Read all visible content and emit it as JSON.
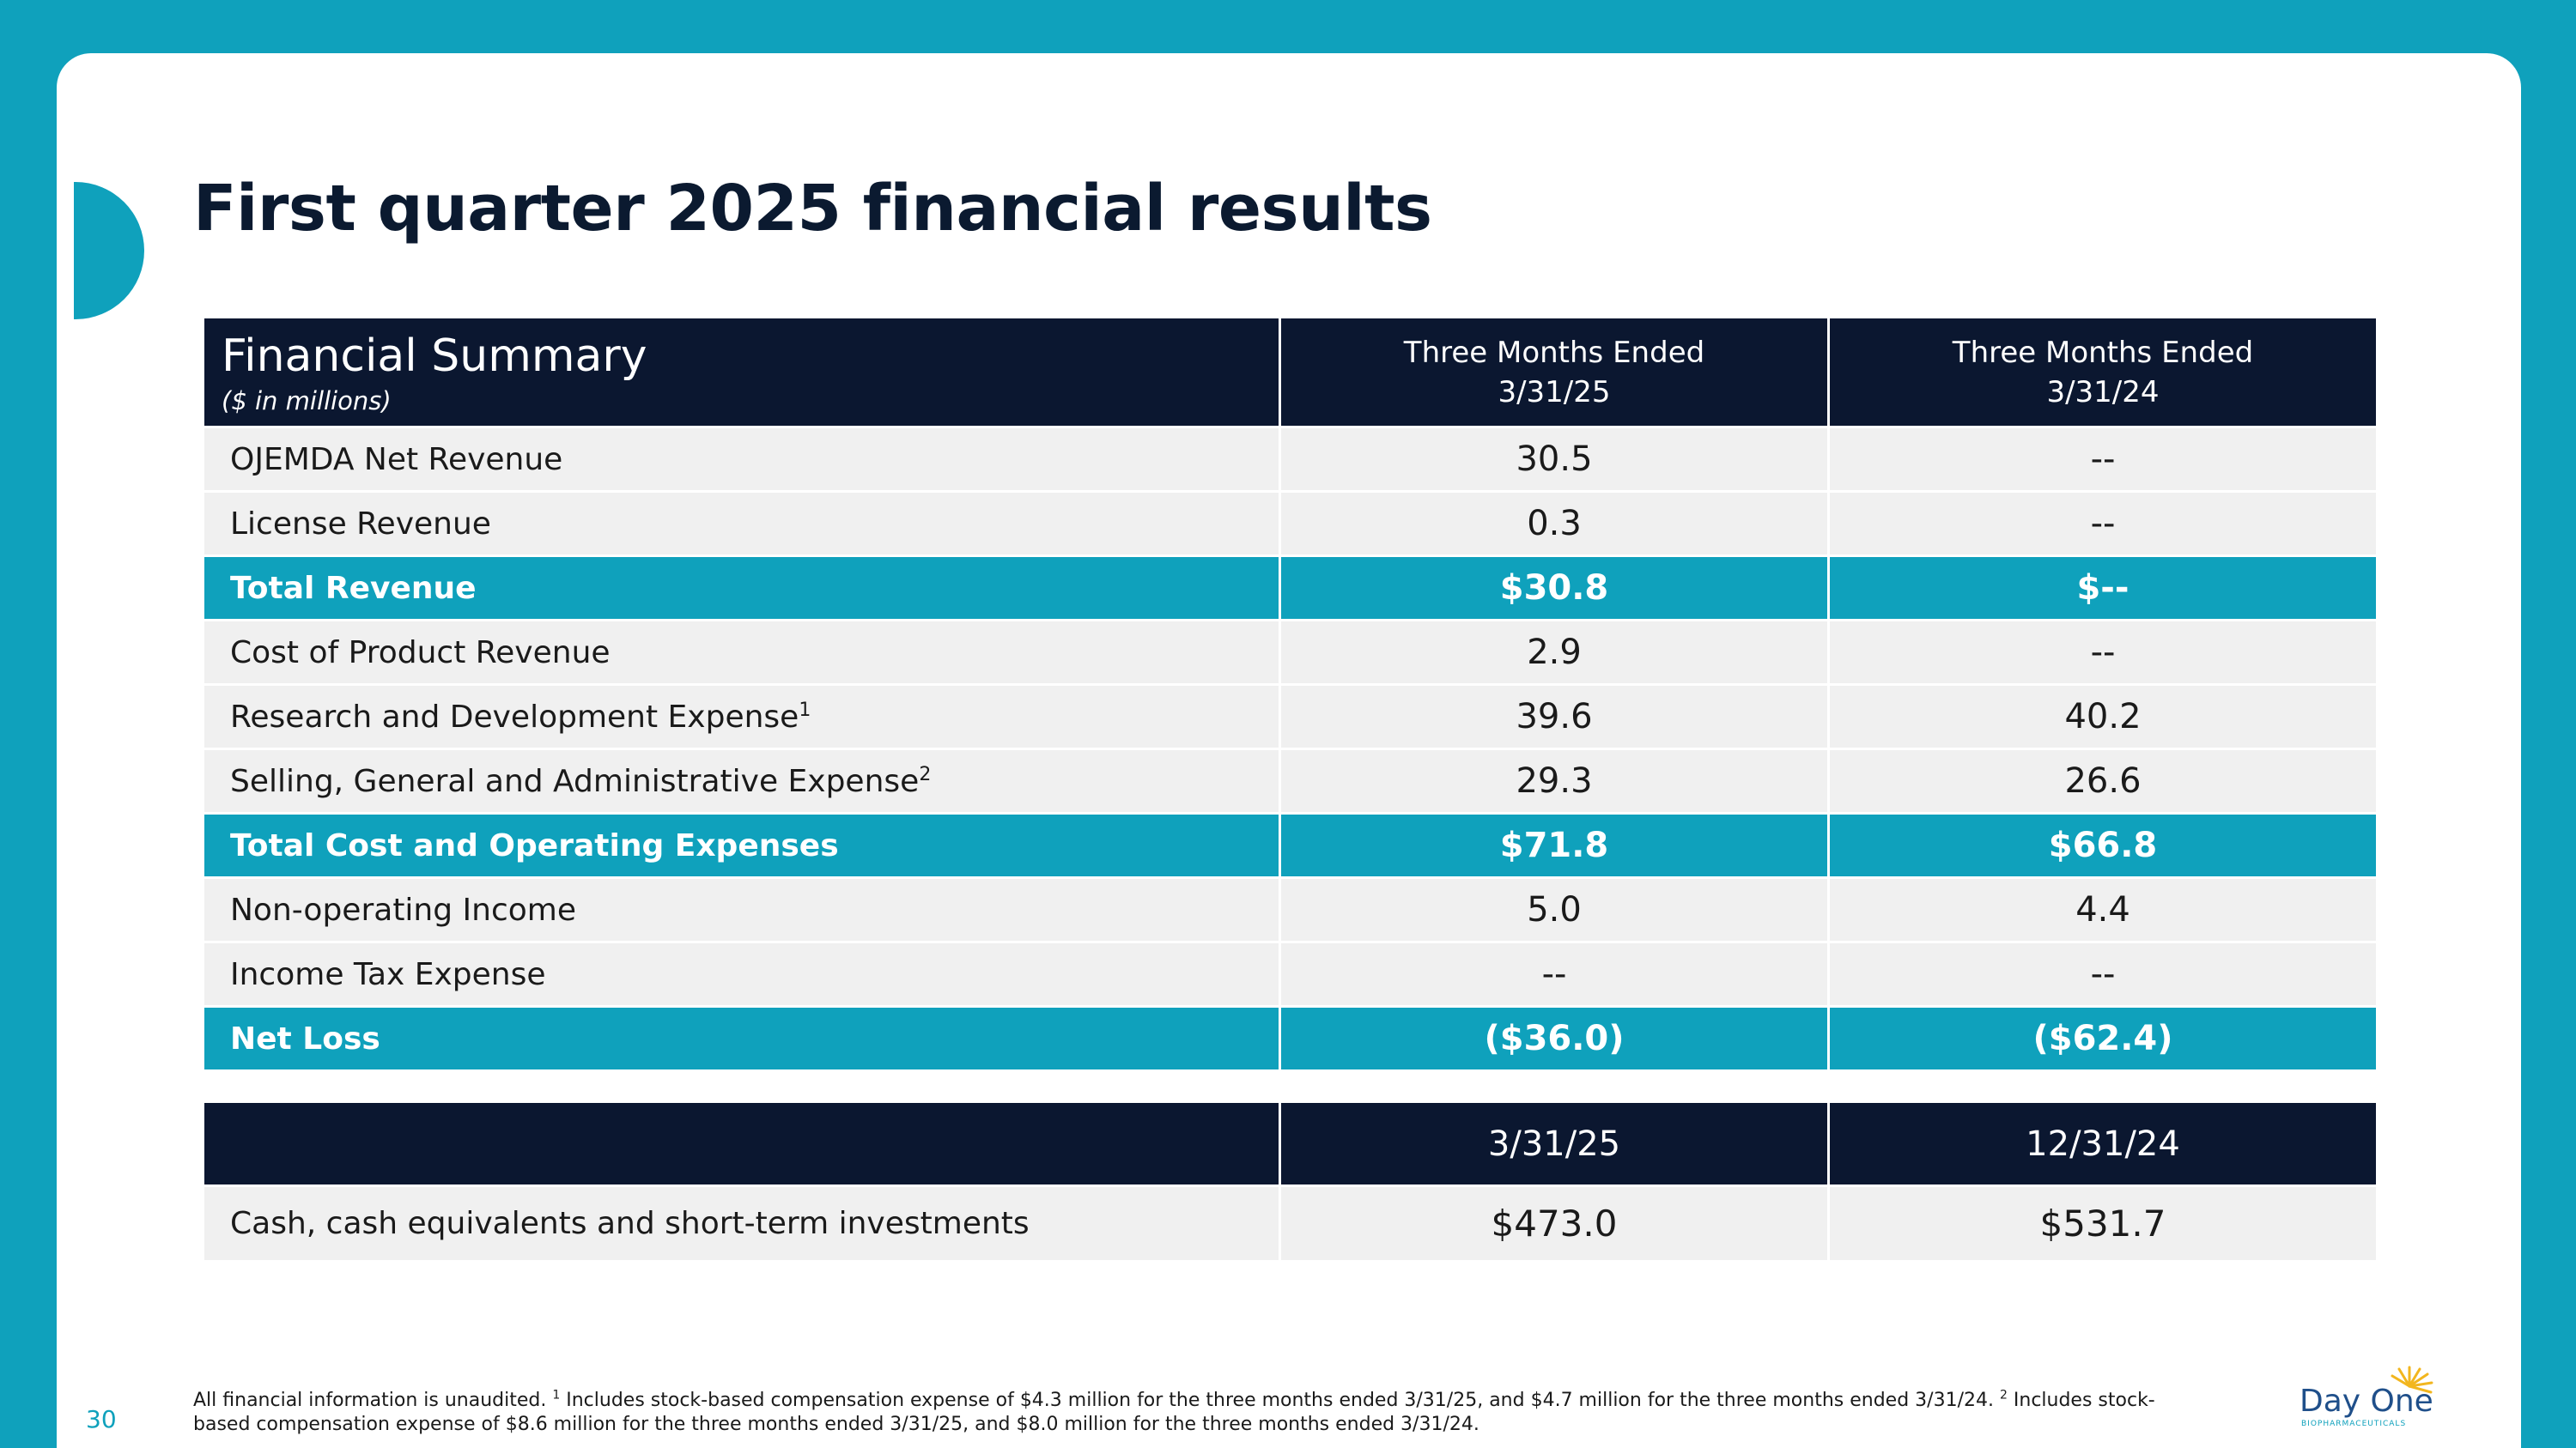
{
  "slide": {
    "title": "First quarter 2025 financial results",
    "page_number": "30"
  },
  "summary_table": {
    "title": "Financial Summary",
    "subtitle": "($ in millions)",
    "col1_line1": "Three Months Ended",
    "col1_line2": "3/31/25",
    "col2_line1": "Three Months Ended",
    "col2_line2": "3/31/24",
    "rows": [
      {
        "label": "OJEMDA Net Revenue",
        "sup": "",
        "v1": "30.5",
        "v2": "--"
      },
      {
        "label": "License Revenue",
        "sup": "",
        "v1": "0.3",
        "v2": "--"
      },
      {
        "label": "Total Revenue",
        "sup": "",
        "v1": "$30.8",
        "v2": "$--"
      },
      {
        "label": "Cost of Product Revenue",
        "sup": "",
        "v1": "2.9",
        "v2": "--"
      },
      {
        "label": "Research and Development Expense",
        "sup": "1",
        "v1": "39.6",
        "v2": "40.2"
      },
      {
        "label": "Selling, General and Administrative Expense",
        "sup": "2",
        "v1": "29.3",
        "v2": "26.6"
      },
      {
        "label": "Total Cost and Operating Expenses",
        "sup": "",
        "v1": "$71.8",
        "v2": "$66.8"
      },
      {
        "label": "Non-operating Income",
        "sup": "",
        "v1": "5.0",
        "v2": "4.4"
      },
      {
        "label": "Income Tax Expense",
        "sup": "",
        "v1": "--",
        "v2": "--"
      },
      {
        "label": "Net Loss",
        "sup": "",
        "v1": "($36.0)",
        "v2": "($62.4)"
      }
    ]
  },
  "cash_table": {
    "col1": "3/31/25",
    "col2": "12/31/24",
    "label": "Cash, cash equivalents and short-term investments",
    "v1": "$473.0",
    "v2": "$531.7"
  },
  "footnote": {
    "part1": "All financial information is unaudited. ",
    "sup1": "1",
    "part2": " Includes stock-based compensation expense of $4.3 million for the three months ended 3/31/25, and $4.7 million for the three months ended 3/31/24. ",
    "sup2": "2",
    "part3": " Includes stock-based compensation expense of $8.6 million for the three months ended 3/31/25, and $8.0 million for the three months ended 3/31/24."
  },
  "logo": {
    "name": "Day One",
    "tagline": "BIOPHARMACEUTICALS"
  },
  "colors": {
    "accent": "#0fa1bc",
    "header_dark": "#0b1730",
    "title": "#0b1a30"
  }
}
